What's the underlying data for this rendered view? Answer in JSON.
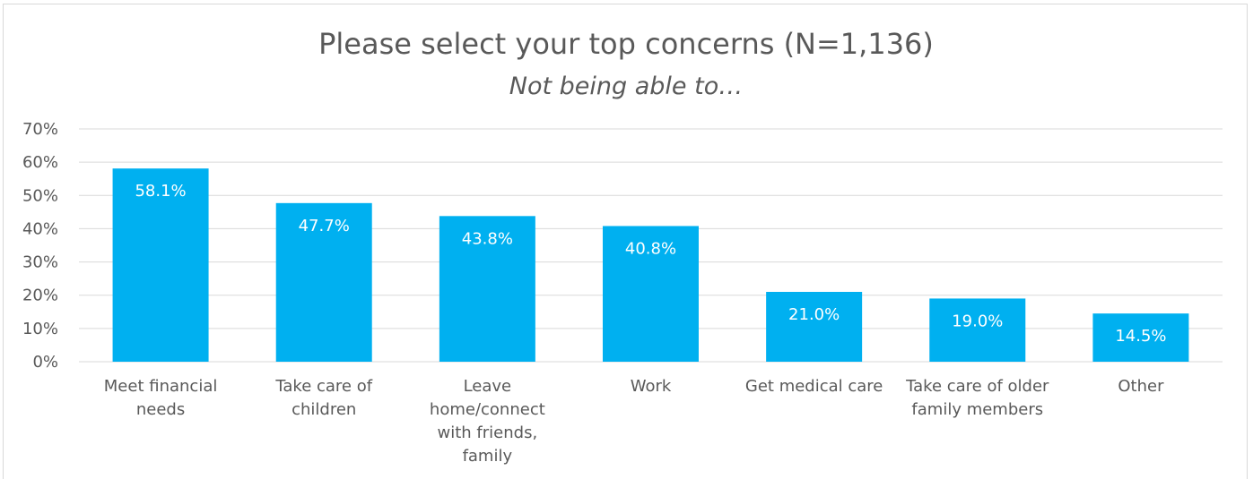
{
  "chart_data": {
    "type": "bar",
    "title": "Please select your top concerns (N=1,136)",
    "subtitle": "Not being able to…",
    "xlabel": "",
    "ylabel": "",
    "categories": [
      [
        "Meet financial",
        "needs"
      ],
      [
        "Take care of",
        "children"
      ],
      [
        "Leave",
        "home/connect",
        "with friends,",
        "family"
      ],
      [
        "Work"
      ],
      [
        "Get medical care"
      ],
      [
        "Take care of older",
        "family members"
      ],
      [
        "Other"
      ]
    ],
    "values": [
      58.1,
      47.7,
      43.8,
      40.8,
      21.0,
      19.0,
      14.5
    ],
    "data_labels": [
      "58.1%",
      "47.7%",
      "43.8%",
      "40.8%",
      "21.0%",
      "19.0%",
      "14.5%"
    ],
    "ylim": [
      0,
      70
    ],
    "yticks": [
      0,
      10,
      20,
      30,
      40,
      50,
      60,
      70
    ],
    "ytick_labels": [
      "0%",
      "10%",
      "20%",
      "30%",
      "40%",
      "50%",
      "60%",
      "70%"
    ],
    "grid": true,
    "legend": "none",
    "bar_color": "#00b0f0",
    "grid_color": "#d9d9d9",
    "text_color": "#595959"
  }
}
